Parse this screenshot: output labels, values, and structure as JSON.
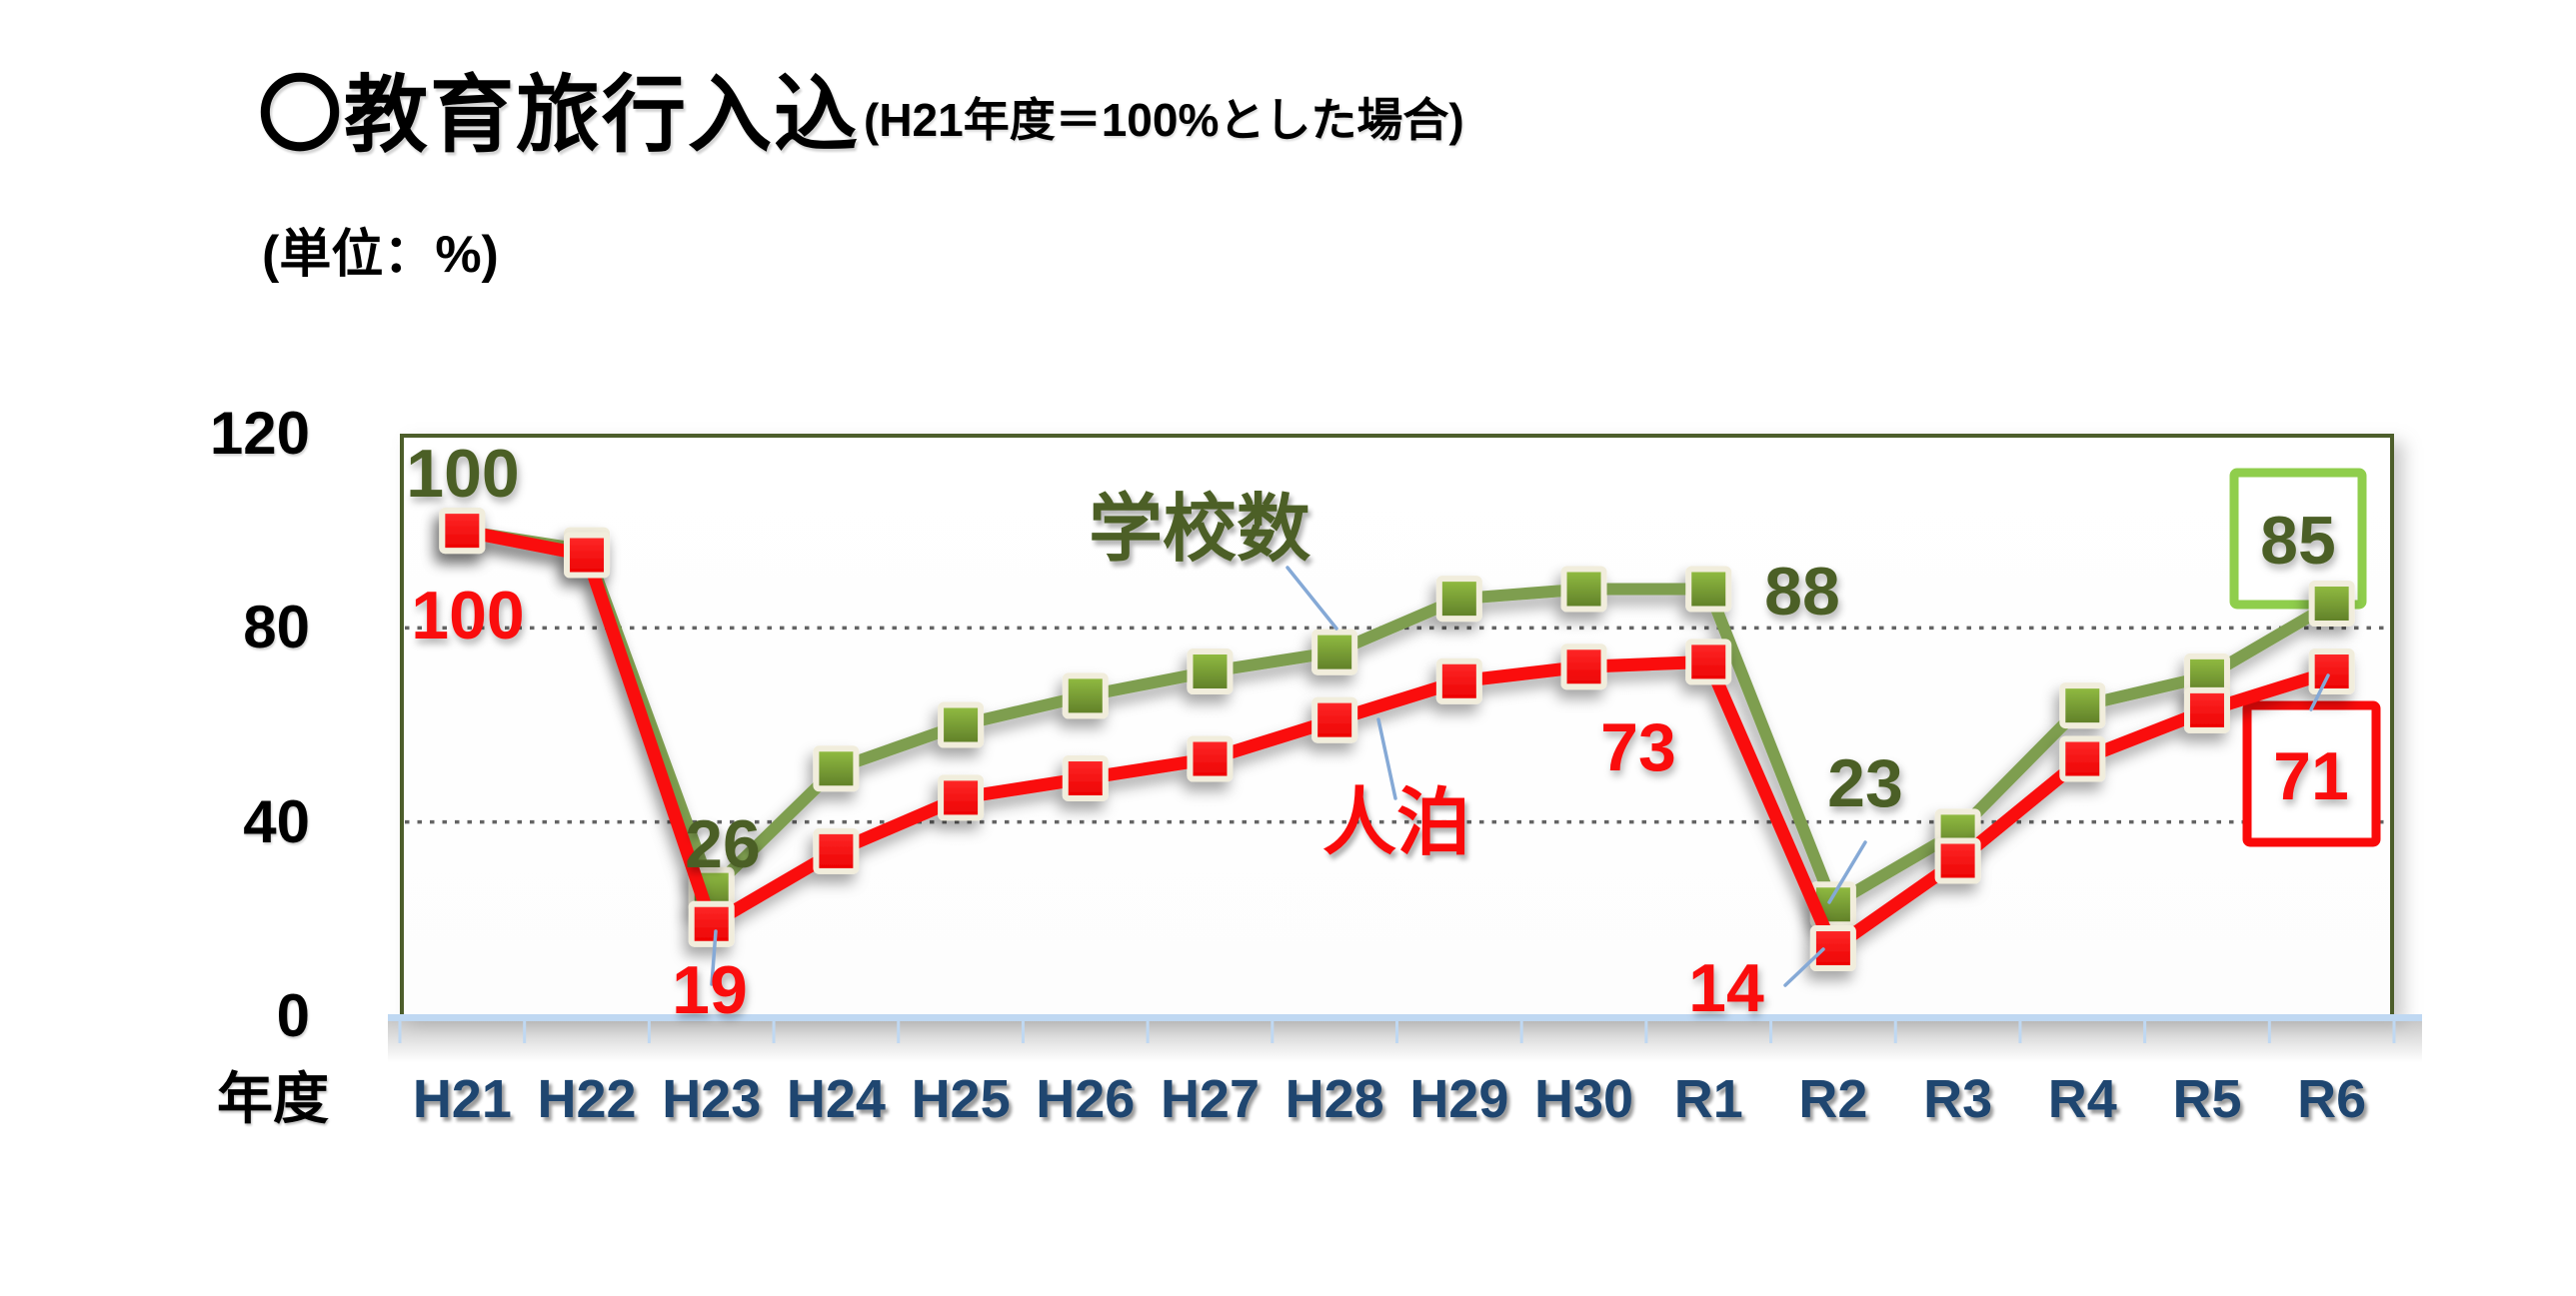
{
  "title": "〇教育旅行入込",
  "subtitle": "(H21年度＝100%とした場合)",
  "unit_label": "(単位：%)",
  "x_axis_title": "年度",
  "series_labels": {
    "schools": "学校数",
    "nights": "人泊"
  },
  "chart_data": {
    "type": "line",
    "title": "教育旅行入込（H21年度＝100%とした場合）",
    "xlabel": "年度",
    "ylabel": "%",
    "ylim": [
      0,
      120
    ],
    "yticks": [
      0,
      40,
      80,
      120
    ],
    "gridlines": [
      40,
      80
    ],
    "grid": "dotted",
    "legend_position": "inline-annotations",
    "categories": [
      "H21",
      "H22",
      "H23",
      "H24",
      "H25",
      "H26",
      "H27",
      "H28",
      "H29",
      "H30",
      "R1",
      "R2",
      "R3",
      "R4",
      "R5",
      "R6"
    ],
    "series": [
      {
        "key": "schools",
        "name": "学校数",
        "color": "#7E9E50",
        "values": [
          100,
          96,
          26,
          51,
          60,
          66,
          71,
          75,
          86,
          88,
          88,
          23,
          38,
          64,
          70,
          85
        ]
      },
      {
        "key": "nights",
        "name": "人泊",
        "color": "#FA0A0A",
        "values": [
          100,
          95,
          19,
          34,
          45,
          49,
          53,
          61,
          69,
          72,
          73,
          14,
          32,
          53,
          63,
          71
        ]
      }
    ]
  },
  "annotations": [
    {
      "series": "schools",
      "category": "H21",
      "text": "100",
      "boxed": false
    },
    {
      "series": "nights",
      "category": "H21",
      "text": "100",
      "boxed": false
    },
    {
      "series": "schools",
      "category": "H23",
      "text": "26",
      "boxed": false
    },
    {
      "series": "nights",
      "category": "H23",
      "text": "19",
      "boxed": false
    },
    {
      "series": "schools",
      "category": "R1",
      "text": "88",
      "boxed": false
    },
    {
      "series": "nights",
      "category": "R1",
      "text": "73",
      "boxed": false
    },
    {
      "series": "schools",
      "category": "R2",
      "text": "23",
      "boxed": false
    },
    {
      "series": "nights",
      "category": "R2",
      "text": "14",
      "boxed": false
    },
    {
      "series": "schools",
      "category": "R6",
      "text": "85",
      "boxed": true
    },
    {
      "series": "nights",
      "category": "R6",
      "text": "71",
      "boxed": true
    }
  ],
  "colors": {
    "schools_line": "#7E9E50",
    "schools_marker_top": "#93BE42",
    "schools_marker_bottom": "#5E7D28",
    "schools_label": "#4C5F26",
    "schools_box_border": "#8FCE4C",
    "nights_line": "#FA0A0A",
    "nights_marker_top": "#FF2A2A",
    "nights_marker_bottom": "#EC0000",
    "nights_label": "#FA0A0A",
    "marker_border": "#F1EDDC",
    "x_tick_label": "#1F4670",
    "axis_line": "#BFD8F2",
    "plot_border": "#4D5E2B",
    "gridline": "#646464",
    "leader_line": "#85A9D6",
    "title_color": "#000000"
  }
}
